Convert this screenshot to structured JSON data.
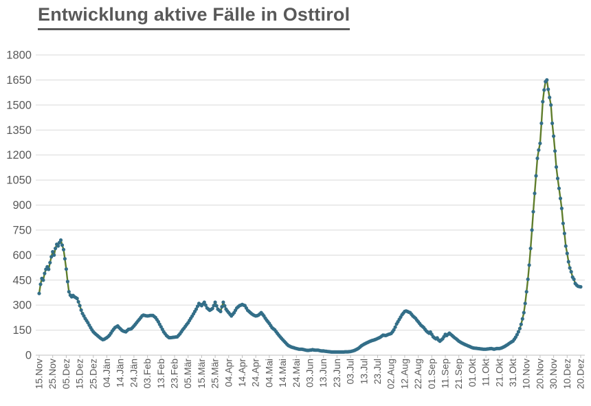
{
  "title": "Entwicklung aktive Fälle in Osttirol",
  "colors": {
    "line": "#5f7d2b",
    "marker": "#336e88",
    "text": "#595959",
    "gridline": "#d9d9d9",
    "axis": "#bfbfbf"
  },
  "chart_data": {
    "type": "line",
    "title": "Entwicklung aktive Fälle in Osttirol",
    "xlabel": "",
    "ylabel": "",
    "ylim": [
      0,
      1800
    ],
    "ytick_step": 150,
    "ytick_labels": [
      "0",
      "150",
      "300",
      "450",
      "600",
      "750",
      "900",
      "1050",
      "1200",
      "1350",
      "1500",
      "1650",
      "1800"
    ],
    "grid": true,
    "legend_position": "none",
    "x_tick_labels": [
      "15.Nov",
      "25.Nov",
      "05.Dez",
      "15.Dez",
      "25.Dez",
      "04.Jän",
      "14.Jän",
      "24.Jän",
      "03.Feb",
      "13.Feb",
      "23.Feb",
      "05.Mär",
      "15.Mär",
      "25.Mär",
      "04.Apr",
      "14.Apr",
      "24.Apr",
      "04.Mai",
      "14.Mai",
      "24.Mai",
      "03.Jun",
      "13.Jun",
      "23.Jun",
      "03.Jul",
      "13.Jul",
      "23.Jul",
      "02.Aug",
      "12.Aug",
      "22.Aug",
      "01.Sep",
      "11.Sep",
      "21.Sep",
      "01.Okt",
      "11.Okt",
      "21.Okt",
      "31.Okt",
      "10.Nov",
      "20.Nov",
      "30.Nov",
      "10.Dez",
      "20.Dez"
    ],
    "days_per_tick": 10,
    "series": [
      {
        "name": "aktive Fälle",
        "values": [
          370,
          425,
          460,
          450,
          490,
          515,
          530,
          515,
          555,
          590,
          620,
          600,
          640,
          665,
          655,
          675,
          690,
          660,
          633,
          578,
          516,
          441,
          380,
          360,
          350,
          358,
          350,
          345,
          340,
          320,
          297,
          270,
          250,
          235,
          220,
          207,
          195,
          180,
          165,
          152,
          140,
          132,
          125,
          118,
          111,
          104,
          98,
          93,
          95,
          100,
          105,
          112,
          120,
          132,
          145,
          155,
          165,
          170,
          175,
          166,
          158,
          150,
          145,
          142,
          140,
          148,
          155,
          156,
          158,
          166,
          175,
          185,
          195,
          205,
          215,
          225,
          235,
          240,
          238,
          236,
          235,
          236,
          238,
          238,
          238,
          232,
          225,
          213,
          200,
          185,
          170,
          155,
          140,
          129,
          118,
          111,
          105,
          105,
          106,
          107,
          108,
          109,
          110,
          119,
          128,
          140,
          152,
          162,
          173,
          184,
          194,
          208,
          221,
          234,
          248,
          262,
          276,
          293,
          310,
          303,
          297,
          307,
          317,
          300,
          283,
          276,
          269,
          274,
          280,
          298,
          317,
          296,
          276,
          269,
          262,
          290,
          317,
          296,
          276,
          265,
          255,
          245,
          235,
          245,
          255,
          269,
          283,
          290,
          297,
          300,
          304,
          300,
          297,
          283,
          269,
          262,
          255,
          248,
          242,
          238,
          235,
          237,
          240,
          247,
          255,
          245,
          235,
          222,
          210,
          200,
          190,
          177,
          165,
          158,
          152,
          141,
          130,
          120,
          110,
          101,
          92,
          83,
          75,
          66,
          58,
          54,
          50,
          47,
          45,
          42,
          40,
          38,
          36,
          36,
          36,
          34,
          32,
          30,
          29,
          29,
          30,
          31,
          33,
          31,
          30,
          30,
          30,
          28,
          26,
          25,
          25,
          24,
          23,
          22,
          21,
          20,
          19,
          19,
          19,
          19,
          19,
          19,
          19,
          19,
          19,
          19,
          20,
          20,
          20,
          21,
          22,
          24,
          26,
          29,
          33,
          37,
          42,
          49,
          56,
          61,
          66,
          70,
          74,
          78,
          82,
          85,
          88,
          90,
          93,
          96,
          100,
          104,
          108,
          114,
          120,
          119,
          118,
          121,
          125,
          127,
          130,
          140,
          152,
          168,
          187,
          200,
          214,
          228,
          242,
          252,
          262,
          265,
          262,
          258,
          255,
          245,
          235,
          228,
          221,
          210,
          200,
          190,
          180,
          173,
          166,
          155,
          145,
          138,
          132,
          139,
          125,
          111,
          104,
          98,
          104,
          91,
          84,
          91,
          98,
          111,
          125,
          118,
          125,
          132,
          125,
          118,
          111,
          104,
          98,
          91,
          84,
          79,
          74,
          70,
          66,
          62,
          59,
          55,
          52,
          48,
          45,
          43,
          42,
          41,
          40,
          39,
          38,
          37,
          36,
          36,
          36,
          37,
          38,
          39,
          40,
          38,
          36,
          38,
          40,
          40,
          40,
          42,
          45,
          49,
          53,
          58,
          63,
          69,
          75,
          80,
          85,
          96,
          108,
          123,
          140,
          160,
          185,
          218,
          255,
          310,
          380,
          455,
          540,
          640,
          750,
          860,
          970,
          1075,
          1180,
          1230,
          1270,
          1390,
          1520,
          1590,
          1640,
          1650,
          1594,
          1545,
          1500,
          1390,
          1313,
          1224,
          1128,
          1060,
          1000,
          940,
          880,
          790,
          730,
          654,
          610,
          560,
          523,
          500,
          468,
          455,
          430,
          420,
          413,
          411,
          410
        ]
      }
    ]
  }
}
